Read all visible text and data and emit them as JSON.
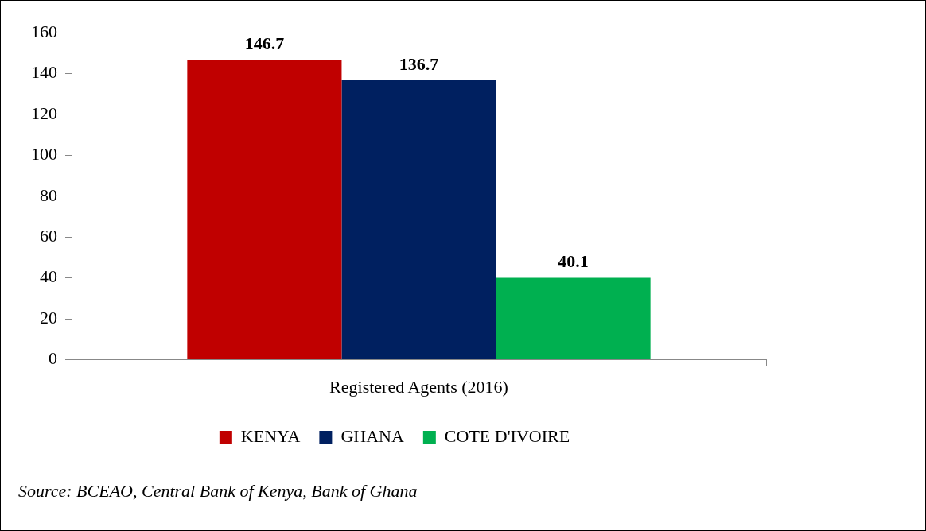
{
  "chart_data": {
    "type": "bar",
    "categories": [
      "Registered Agents (2016)"
    ],
    "series": [
      {
        "name": "KENYA",
        "color": "#c00000",
        "values": [
          146.7
        ]
      },
      {
        "name": "GHANA",
        "color": "#002060",
        "values": [
          136.7
        ]
      },
      {
        "name": "COTE D'IVOIRE",
        "color": "#00b050",
        "values": [
          40.1
        ]
      }
    ],
    "ylim": [
      0,
      160
    ],
    "yticks": [
      0,
      20,
      40,
      60,
      80,
      100,
      120,
      140,
      160
    ],
    "grid": false,
    "legend": "bottom",
    "data_labels": true,
    "annotations": [
      "Source: BCEAO, Central Bank of Kenya, Bank of Ghana"
    ]
  }
}
